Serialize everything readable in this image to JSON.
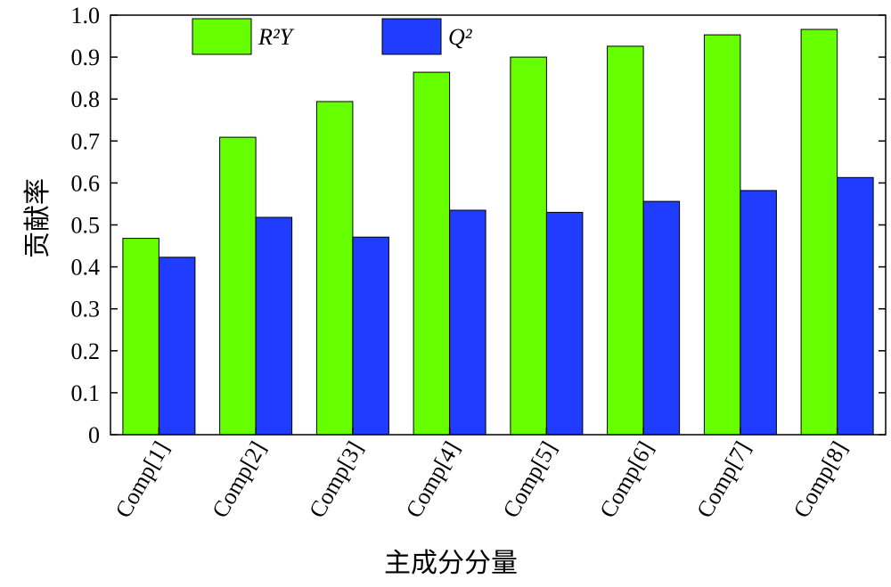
{
  "chart_data": {
    "type": "bar",
    "xlabel": "主成分分量",
    "ylabel": "贡献率",
    "ylim": [
      0,
      1.0
    ],
    "yticks": [
      "0",
      "0.1",
      "0.2",
      "0.3",
      "0.4",
      "0.5",
      "0.6",
      "0.7",
      "0.8",
      "0.9",
      "1.0"
    ],
    "categories": [
      "Comp[1]",
      "Comp[2]",
      "Comp[3]",
      "Comp[4]",
      "Comp[5]",
      "Comp[6]",
      "Comp[7]",
      "Comp[8]"
    ],
    "series": [
      {
        "name": "R²Y",
        "color": "#66ff00",
        "values": [
          0.468,
          0.709,
          0.794,
          0.864,
          0.9,
          0.926,
          0.953,
          0.966
        ]
      },
      {
        "name": "Q²",
        "color": "#1f3cff",
        "values": [
          0.423,
          0.518,
          0.471,
          0.535,
          0.53,
          0.556,
          0.582,
          0.613
        ]
      }
    ],
    "legend": "top",
    "grid": false
  }
}
